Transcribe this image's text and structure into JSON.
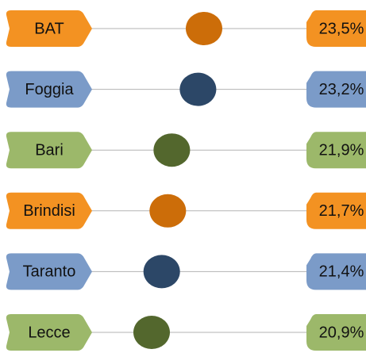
{
  "chart_data": {
    "type": "dot",
    "categories": [
      "BAT",
      "Foggia",
      "Bari",
      "Brindisi",
      "Taranto",
      "Lecce"
    ],
    "values": [
      23.5,
      23.2,
      21.9,
      21.7,
      21.4,
      20.9
    ],
    "value_labels": [
      "23,5%",
      "23,2%",
      "21,9%",
      "21,7%",
      "21,4%",
      "20,9%"
    ],
    "colors": [
      "#f39222",
      "#7b9bc8",
      "#9cb86a",
      "#f39222",
      "#7b9bc8",
      "#9cb86a"
    ],
    "dot_colors": [
      "#cc6d09",
      "#2c4767",
      "#53672d",
      "#cc6d09",
      "#2c4767",
      "#53672d"
    ]
  }
}
